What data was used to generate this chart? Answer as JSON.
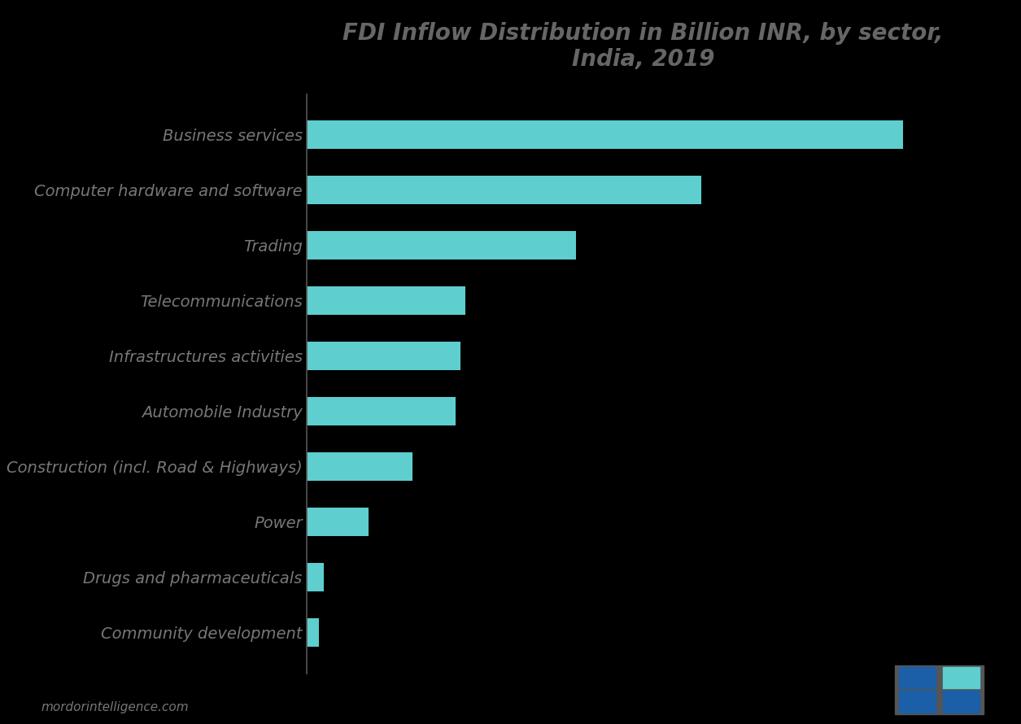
{
  "title": "FDI Inflow Distribution in Billion INR, by sector,\nIndia, 2019",
  "title_fontsize": 20,
  "title_color": "#666666",
  "bar_color": "#5ECECE",
  "background_color": "#000000",
  "plot_bg_color": "#000000",
  "categories": [
    "Business services",
    "Computer hardware and software",
    "Trading",
    "Telecommunications",
    "Infrastructures activities",
    "Automobile Industry",
    "Construction (incl. Road & Highways)",
    "Power",
    "Drugs and pharmaceuticals",
    "Community development"
  ],
  "values": [
    620,
    410,
    280,
    165,
    160,
    155,
    110,
    65,
    18,
    13
  ],
  "xlim": [
    0,
    700
  ],
  "label_color": "#777777",
  "label_fontsize": 14,
  "spine_color": "#555555",
  "footer_text": "mordorintelligence.com",
  "footer_fontsize": 11,
  "logo_color_tl": "#1a6fa8",
  "logo_color_tr": "#5ECECE",
  "logo_color_bl": "#1a6fa8",
  "logo_color_br": "#1a6fa8"
}
